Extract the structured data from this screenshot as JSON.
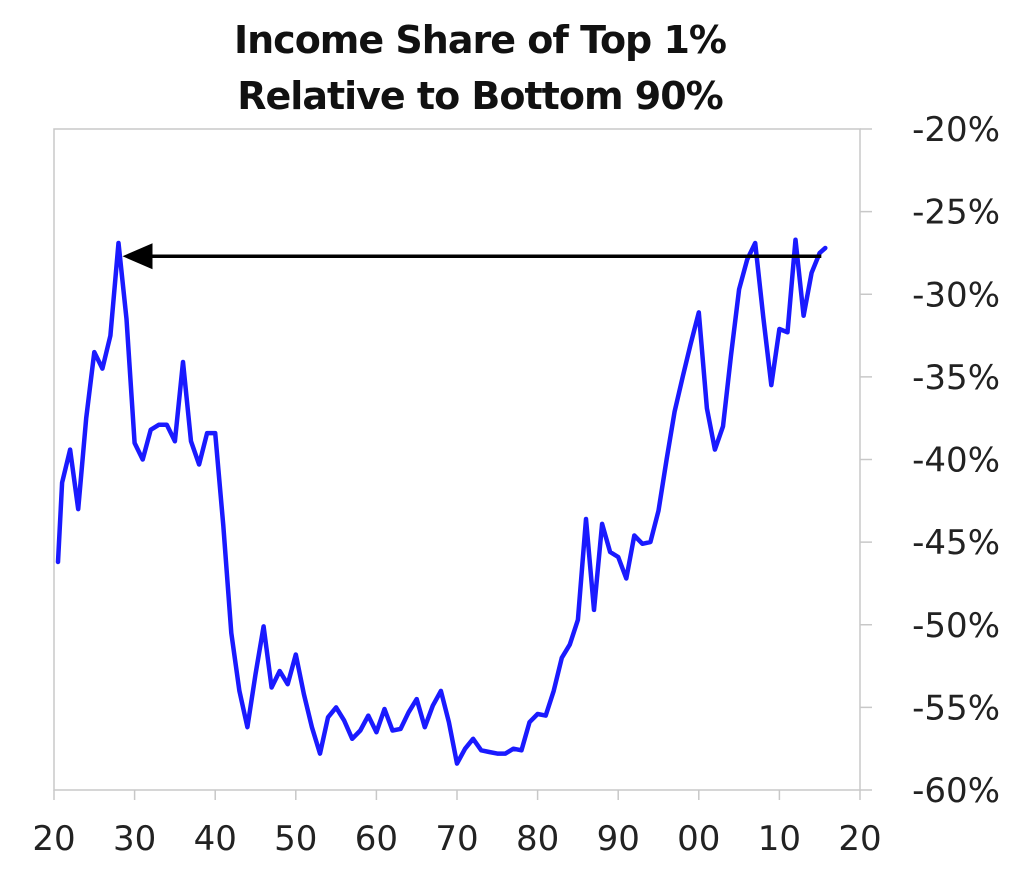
{
  "chart_data": {
    "type": "line",
    "title_lines": [
      "Income Share of Top 1%",
      "Relative to Bottom 90%"
    ],
    "xlabel": "",
    "ylabel": "",
    "xlim": [
      1920,
      2020
    ],
    "ylim": [
      -60,
      -20
    ],
    "x_ticks": [
      1920,
      1930,
      1940,
      1950,
      1960,
      1970,
      1980,
      1990,
      2000,
      2010,
      2020
    ],
    "x_tick_labels": [
      "20",
      "30",
      "40",
      "50",
      "60",
      "70",
      "80",
      "90",
      "00",
      "10",
      "20"
    ],
    "y_ticks": [
      -20,
      -25,
      -30,
      -35,
      -40,
      -45,
      -50,
      -55,
      -60
    ],
    "y_tick_labels": [
      "-20%",
      "-25%",
      "-30%",
      "-35%",
      "-40%",
      "-45%",
      "-50%",
      "-55%",
      "-60%"
    ],
    "y_axis_side": "right",
    "grid": false,
    "series": [
      {
        "color": "#1a1aff",
        "x": [
          1920.5,
          1921,
          1922,
          1923,
          1924,
          1925,
          1926,
          1927,
          1928,
          1929,
          1930,
          1931,
          1932,
          1933,
          1934,
          1935,
          1936,
          1937,
          1938,
          1939,
          1940,
          1941,
          1942,
          1943,
          1944,
          1945,
          1946,
          1947,
          1948,
          1949,
          1950,
          1951,
          1952,
          1953,
          1954,
          1955,
          1956,
          1957,
          1958,
          1959,
          1960,
          1961,
          1962,
          1963,
          1964,
          1965,
          1966,
          1967,
          1968,
          1969,
          1970,
          1971,
          1972,
          1973,
          1974,
          1975,
          1976,
          1977,
          1978,
          1979,
          1980,
          1981,
          1982,
          1983,
          1984,
          1985,
          1986,
          1987,
          1988,
          1989,
          1990,
          1991,
          1992,
          1993,
          1994,
          1995,
          1996,
          1997,
          1998,
          1999,
          2000,
          2001,
          2002,
          2003,
          2004,
          2005,
          2006,
          2007,
          2008,
          2009,
          2010,
          2011,
          2012,
          2013,
          2014,
          2015,
          2015.7
        ],
        "values": [
          -46.2,
          -41.4,
          -39.4,
          -43.0,
          -37.5,
          -33.5,
          -34.5,
          -32.5,
          -26.9,
          -31.5,
          -39.0,
          -40.0,
          -38.2,
          -37.9,
          -37.9,
          -38.9,
          -34.1,
          -38.9,
          -40.3,
          -38.4,
          -38.4,
          -44.0,
          -50.5,
          -54.0,
          -56.2,
          -53.0,
          -50.1,
          -53.8,
          -52.8,
          -53.6,
          -51.8,
          -54.2,
          -56.2,
          -57.8,
          -55.6,
          -55.0,
          -55.8,
          -56.9,
          -56.4,
          -55.5,
          -56.5,
          -55.1,
          -56.4,
          -56.3,
          -55.3,
          -54.5,
          -56.2,
          -54.9,
          -54.0,
          -55.9,
          -58.4,
          -57.5,
          -56.9,
          -57.6,
          -57.7,
          -57.8,
          -57.8,
          -57.5,
          -57.6,
          -55.9,
          -55.4,
          -55.5,
          -54.0,
          -52.0,
          -51.2,
          -49.7,
          -43.6,
          -49.1,
          -43.9,
          -45.6,
          -45.9,
          -47.2,
          -44.6,
          -45.1,
          -45.0,
          -43.1,
          -40.0,
          -37.1,
          -35.0,
          -33.0,
          -31.1,
          -36.9,
          -39.4,
          -38.0,
          -33.7,
          -29.7,
          -27.9,
          -26.9,
          -31.4,
          -35.5,
          -32.1,
          -32.3,
          -26.7,
          -31.3,
          -28.7,
          -27.5,
          -27.2
        ]
      }
    ],
    "annotations": [
      {
        "type": "arrow",
        "color": "#000000",
        "from": [
          2015.2,
          -27.7
        ],
        "to": [
          1928.5,
          -27.7
        ]
      }
    ]
  }
}
